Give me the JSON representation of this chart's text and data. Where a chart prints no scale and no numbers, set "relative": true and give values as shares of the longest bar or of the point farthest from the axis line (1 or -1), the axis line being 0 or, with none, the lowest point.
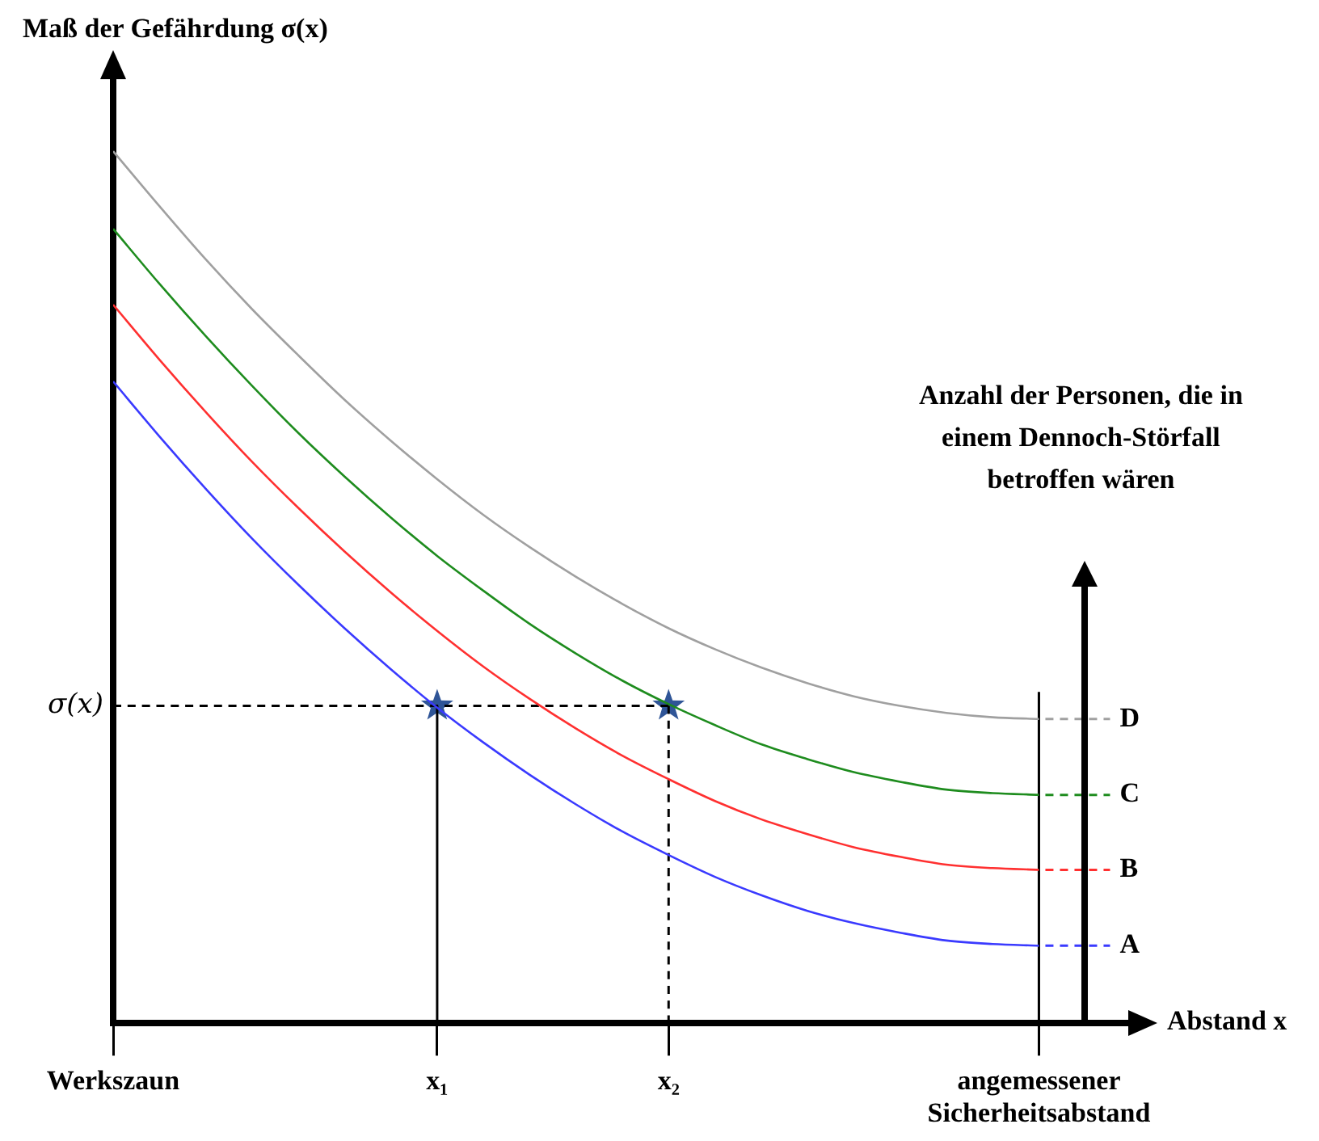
{
  "chart_data": {
    "type": "line",
    "relative": true,
    "ylabel": "Maß der Gefährdung σ(x)",
    "xlabel": "Abstand x",
    "y2label": "Anzahl der Personen, die in einem Dennoch-Störfall betroffen wären",
    "categories": [
      "Werkszaun",
      null,
      null,
      null,
      null,
      null,
      null,
      "x₁",
      null,
      null,
      null,
      null,
      "x₂",
      null,
      null,
      null,
      null,
      null,
      null,
      null,
      "angemessener Sicherheitsabstand",
      null,
      null
    ],
    "series": [
      {
        "name": "A",
        "color": "#3a3aff",
        "values": [
          0.736,
          0.673,
          0.613,
          0.556,
          0.503,
          0.453,
          0.406,
          0.362,
          0.322,
          0.285,
          0.251,
          0.22,
          0.193,
          0.168,
          0.147,
          0.129,
          0.115,
          0.104,
          0.095,
          0.091,
          0.089,
          null,
          null
        ]
      },
      {
        "name": "B",
        "color": "#ff3030",
        "values": [
          0.824,
          0.761,
          0.701,
          0.644,
          0.591,
          0.541,
          0.494,
          0.45,
          0.409,
          0.372,
          0.338,
          0.307,
          0.28,
          0.255,
          0.234,
          0.217,
          0.202,
          0.191,
          0.182,
          0.178,
          0.176,
          null,
          null
        ]
      },
      {
        "name": "C",
        "color": "#1e8c1e",
        "values": [
          0.911,
          0.848,
          0.788,
          0.731,
          0.677,
          0.627,
          0.58,
          0.536,
          0.496,
          0.458,
          0.424,
          0.393,
          0.366,
          0.342,
          0.32,
          0.303,
          0.288,
          0.277,
          0.268,
          0.264,
          0.262,
          null,
          null
        ]
      },
      {
        "name": "D",
        "color": "#a0a0a0",
        "values": [
          1,
          0.937,
          0.876,
          0.819,
          0.766,
          0.715,
          0.668,
          0.624,
          0.583,
          0.546,
          0.512,
          0.481,
          0.453,
          0.429,
          0.408,
          0.39,
          0.375,
          0.364,
          0.356,
          0.351,
          0.349,
          null,
          null
        ]
      },
      {
        "type": "line",
        "color": "#000000",
        "line_style": "dashed",
        "x": [
          "Werkszaun",
          "x₂"
        ],
        "values": [
          0.364,
          0.364
        ]
      },
      {
        "type": "line",
        "color": "#000000",
        "line_style": "solid",
        "x": [
          "x₁",
          "x₁"
        ],
        "values": [
          0,
          0.364
        ]
      },
      {
        "type": "line",
        "color": "#000000",
        "line_style": "dashed",
        "x": [
          "x₂",
          "x₂"
        ],
        "values": [
          0,
          0.364
        ]
      },
      {
        "type": "line",
        "color": "#000000",
        "line_style": "solid",
        "x": [
          "angemessener Sicherheitsabstand",
          "angemessener Sicherheitsabstand"
        ],
        "values": [
          0,
          0.38
        ]
      },
      {
        "type": "scatter",
        "color": "#2f5597",
        "marker": "star",
        "x": [
          "x₁",
          "x₂"
        ],
        "values": [
          0.364,
          0.364
        ]
      }
    ],
    "annotations": [
      {
        "text": "σ(x)",
        "x": "Werkszaun",
        "y": 0.364
      }
    ],
    "grid": false,
    "legend": "right",
    "marker": "none"
  }
}
